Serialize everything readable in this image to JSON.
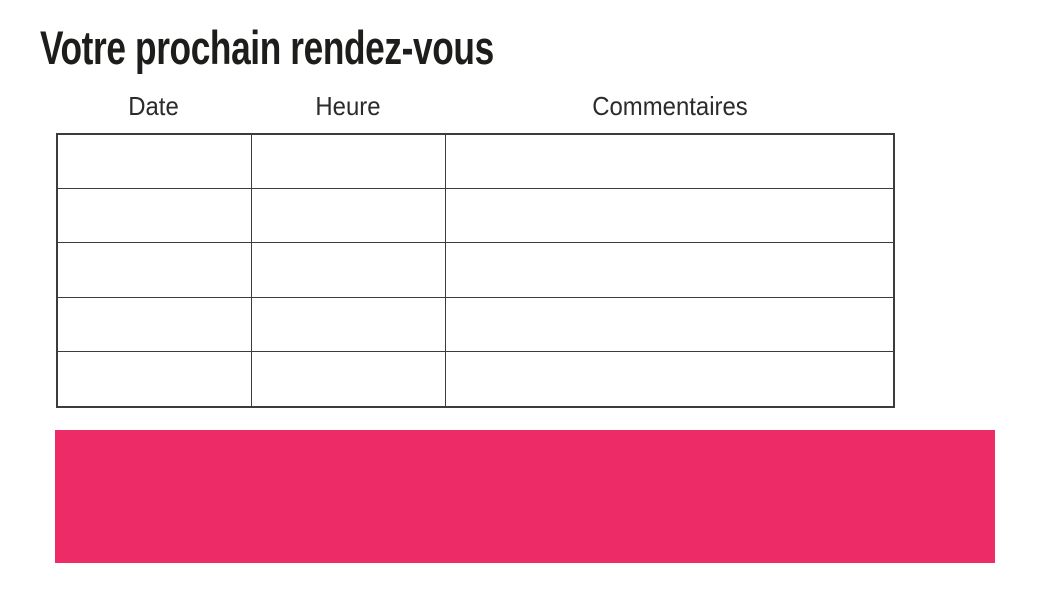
{
  "page": {
    "title": "Votre prochain rendez-vous"
  },
  "appointments_table": {
    "columns": [
      {
        "label": "Date"
      },
      {
        "label": "Heure"
      },
      {
        "label": "Commentaires"
      }
    ],
    "rows": [
      [
        "",
        "",
        ""
      ],
      [
        "",
        "",
        ""
      ],
      [
        "",
        "",
        ""
      ],
      [
        "",
        "",
        ""
      ],
      [
        "",
        "",
        ""
      ]
    ]
  },
  "colors": {
    "accent_pink": "#ED2B66",
    "title_text": "#1D1D1B",
    "header_text": "#2B2B2B",
    "table_border": "#3C3C3C"
  }
}
